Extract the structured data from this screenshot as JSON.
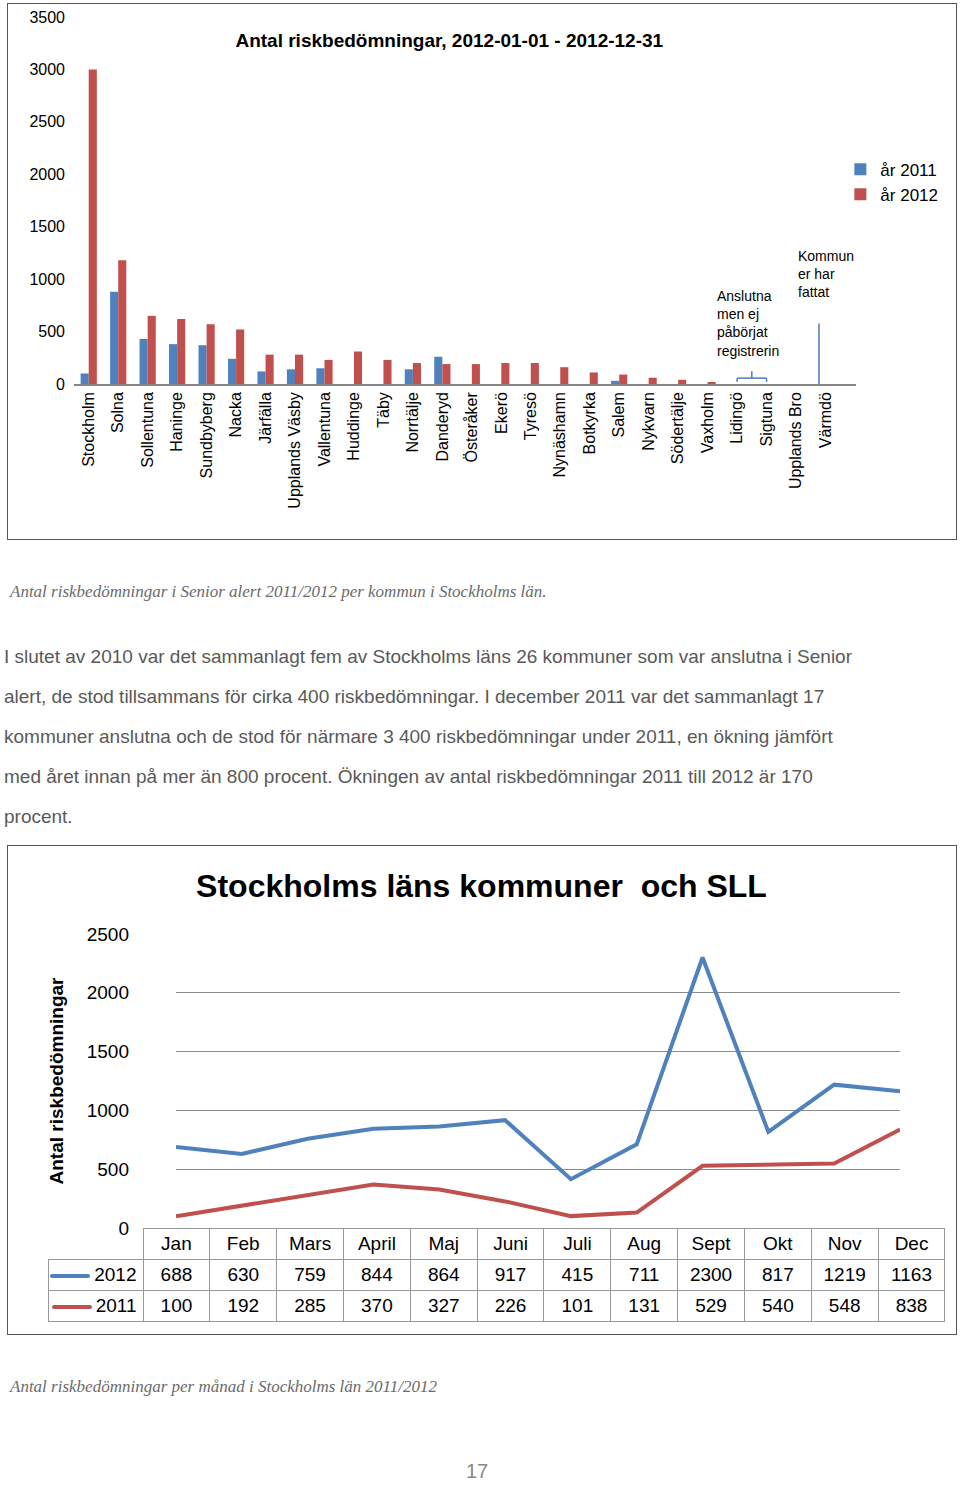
{
  "chart_data": [
    {
      "type": "bar",
      "title": "Antal riskbedömningar, 2012-01-01 - 2012-12-31",
      "categories": [
        "Stockholm",
        "Solna",
        "Sollentuna",
        "Haninge",
        "Sundbyberg",
        "Nacka",
        "Järfälla",
        "Upplands Väsby",
        "Vallentuna",
        "Huddinge",
        "Täby",
        "Norrtälje",
        "Danderyd",
        "Österåker",
        "Ekerö",
        "Tyresö",
        "Nynäshamn",
        "Botkyrka",
        "Salem",
        "Nykvarn",
        "Södertälje",
        "Vaxholm",
        "Lidingö",
        "Sigtuna",
        "Upplands Bro",
        "Värmdö"
      ],
      "series": [
        {
          "name": "år 2011",
          "color": "#4f81bd",
          "values": [
            100,
            880,
            430,
            380,
            370,
            240,
            120,
            140,
            150,
            null,
            null,
            140,
            260,
            null,
            null,
            null,
            null,
            null,
            30,
            null,
            null,
            null,
            null,
            null,
            null,
            null
          ]
        },
        {
          "name": "år 2012",
          "color": "#c0504d",
          "values": [
            3000,
            1180,
            650,
            620,
            570,
            520,
            280,
            280,
            230,
            310,
            230,
            200,
            190,
            190,
            200,
            200,
            160,
            110,
            90,
            60,
            40,
            10,
            null,
            null,
            null,
            null
          ]
        }
      ],
      "ylim": [
        0,
        3500
      ],
      "yticks": [
        0,
        500,
        1000,
        1500,
        2000,
        2500,
        3000,
        3500
      ],
      "grid": false,
      "legend": "right",
      "annotations": [
        {
          "text": [
            "Anslutna",
            "men ej",
            "påbörjat",
            "registrerin"
          ]
        },
        {
          "text": [
            "Kommun",
            "er har",
            "fattat"
          ]
        }
      ]
    },
    {
      "type": "line",
      "title": "Stockholms läns kommuner  och SLL",
      "y_label": "Antal riskbedömningar",
      "categories": [
        "Jan",
        "Feb",
        "Mars",
        "April",
        "Maj",
        "Juni",
        "Juli",
        "Aug",
        "Sept",
        "Okt",
        "Nov",
        "Dec"
      ],
      "series": [
        {
          "name": "2012",
          "color": "#4f81bd",
          "values": [
            688,
            630,
            759,
            844,
            864,
            917,
            415,
            711,
            2300,
            817,
            1219,
            1163
          ]
        },
        {
          "name": "2011",
          "color": "#c0504d",
          "values": [
            100,
            192,
            285,
            370,
            327,
            226,
            101,
            131,
            529,
            540,
            548,
            838
          ]
        }
      ],
      "ylim": [
        0,
        2500
      ],
      "yticks": [
        0,
        500,
        1000,
        1500,
        2000,
        2500
      ],
      "grid": true
    }
  ],
  "text": {
    "caption_1": "Antal riskbedömningar i Senior alert 2011/2012 per kommun i Stockholms län.",
    "paragraph": [
      "I slutet av 2010 var det sammanlagt fem av Stockholms läns 26 kommuner som var anslutna i Senior",
      "alert, de stod tillsammans för cirka 400 riskbedömningar. I december 2011 var det sammanlagt 17",
      "kommuner anslutna och de stod för närmare 3 400 riskbedömningar under 2011, en ökning jämfört",
      "med året innan på mer än 800 procent. Ökningen av antal riskbedömningar 2011 till 2012 är 170",
      "procent."
    ],
    "caption_2": "Antal riskbedömningar per månad i Stockholms län 2011/2012",
    "page_number": "17"
  }
}
